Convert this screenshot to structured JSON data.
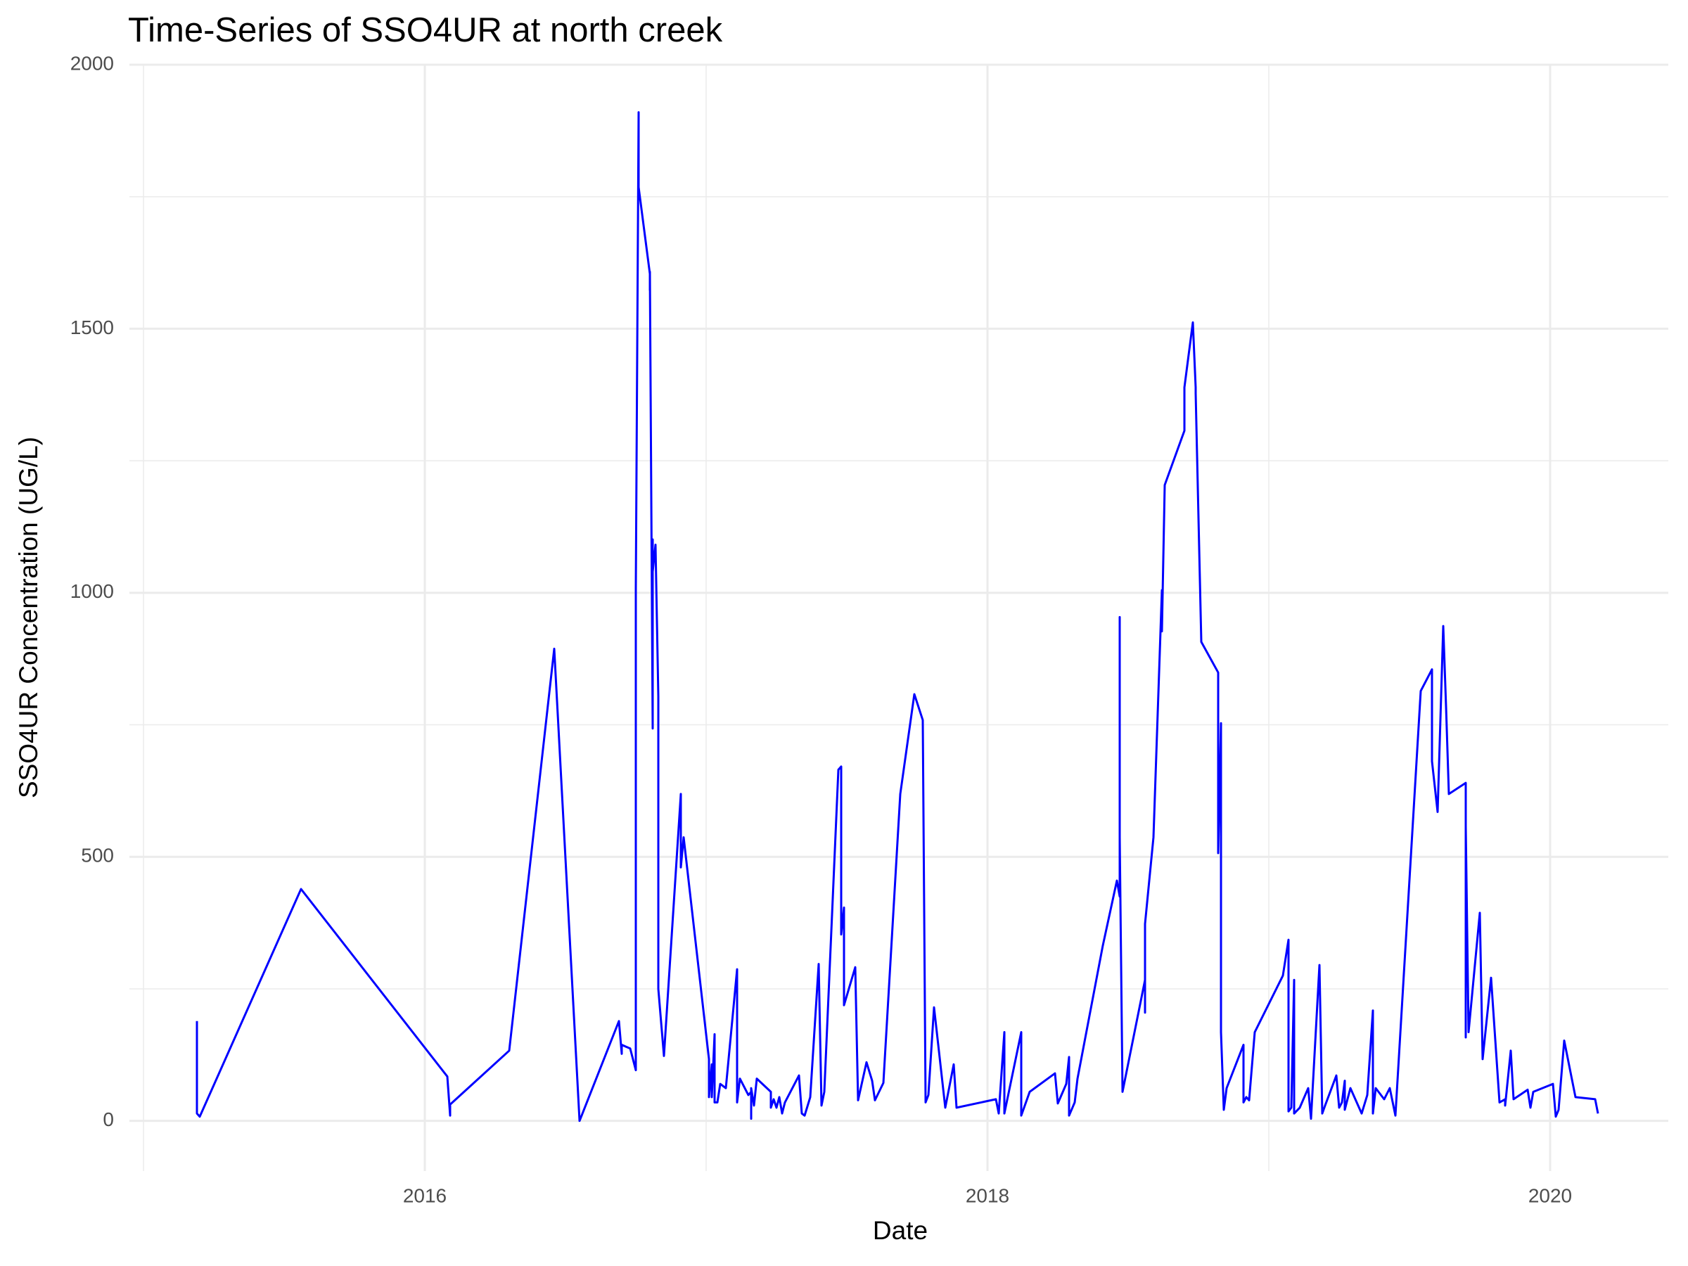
{
  "chart_data": {
    "type": "line",
    "title": "Time-Series of SSO4UR at north creek",
    "x_label": "Date",
    "y_label": "SSO4UR Concentration (UG/L)",
    "color": "#0000ff",
    "grid": true,
    "xlim": [
      2014.95,
      2020.42
    ],
    "xticks": [
      2016,
      2018,
      2020
    ],
    "xminorticks": [
      2015,
      2017,
      2019
    ],
    "ylim": [
      -95,
      2000
    ],
    "yticks": [
      0,
      500,
      1000,
      1500,
      2000
    ],
    "yminorticks": [
      250,
      750,
      1250,
      1750
    ],
    "x": [
      2015.19,
      2015.19,
      2015.2,
      2015.56,
      2016.08,
      2016.09,
      2016.09,
      2016.3,
      2016.46,
      2016.55,
      2016.69,
      2016.7,
      2016.7,
      2016.73,
      2016.75,
      2016.75,
      2016.76,
      2016.76,
      2016.76,
      2016.8,
      2016.8,
      2016.8,
      2016.81,
      2016.81,
      2016.81,
      2016.82,
      2016.83,
      2016.83,
      2016.85,
      2016.91,
      2016.91,
      2016.92,
      2017.01,
      2017.01,
      2017.02,
      2017.02,
      2017.03,
      2017.03,
      2017.04,
      2017.05,
      2017.07,
      2017.11,
      2017.11,
      2017.12,
      2017.15,
      2017.16,
      2017.16,
      2017.16,
      2017.17,
      2017.18,
      2017.23,
      2017.23,
      2017.24,
      2017.25,
      2017.26,
      2017.27,
      2017.28,
      2017.33,
      2017.34,
      2017.35,
      2017.37,
      2017.4,
      2017.41,
      2017.42,
      2017.47,
      2017.48,
      2017.48,
      2017.49,
      2017.49,
      2017.53,
      2017.54,
      2017.57,
      2017.59,
      2017.6,
      2017.63,
      2017.69,
      2017.74,
      2017.77,
      2017.78,
      2017.79,
      2017.81,
      2017.85,
      2017.88,
      2017.89,
      2018.03,
      2018.04,
      2018.06,
      2018.06,
      2018.12,
      2018.12,
      2018.13,
      2018.15,
      2018.24,
      2018.25,
      2018.28,
      2018.29,
      2018.29,
      2018.31,
      2018.32,
      2018.41,
      2018.46,
      2018.47,
      2018.47,
      2018.47,
      2018.48,
      2018.56,
      2018.56,
      2018.56,
      2018.59,
      2018.62,
      2018.62,
      2018.63,
      2018.7,
      2018.7,
      2018.73,
      2018.74,
      2018.74,
      2018.76,
      2018.82,
      2018.82,
      2018.83,
      2018.83,
      2018.84,
      2018.85,
      2018.91,
      2018.91,
      2018.92,
      2018.93,
      2018.95,
      2019.05,
      2019.07,
      2019.07,
      2019.08,
      2019.09,
      2019.09,
      2019.11,
      2019.14,
      2019.15,
      2019.18,
      2019.19,
      2019.2,
      2019.24,
      2019.25,
      2019.26,
      2019.27,
      2019.27,
      2019.29,
      2019.33,
      2019.35,
      2019.37,
      2019.37,
      2019.38,
      2019.41,
      2019.43,
      2019.45,
      2019.54,
      2019.58,
      2019.58,
      2019.6,
      2019.62,
      2019.63,
      2019.64,
      2019.7,
      2019.7,
      2019.7,
      2019.71,
      2019.75,
      2019.76,
      2019.79,
      2019.82,
      2019.84,
      2019.84,
      2019.86,
      2019.87,
      2019.92,
      2019.93,
      2019.94,
      2020.01,
      2020.02,
      2020.03,
      2020.05,
      2020.09,
      2020.16,
      2020.17
    ],
    "values": [
      189,
      14,
      8,
      439,
      84,
      10,
      31,
      133,
      894,
      0,
      189,
      127,
      144,
      137,
      96,
      1009,
      1910,
      1809,
      1768,
      1604,
      1573,
      1608,
      743,
      1101,
      1040,
      1091,
      804,
      250,
      123,
      619,
      480,
      537,
      117,
      45,
      107,
      45,
      164,
      35,
      35,
      70,
      62,
      287,
      35,
      80,
      49,
      55,
      4,
      62,
      29,
      80,
      55,
      25,
      41,
      25,
      45,
      14,
      35,
      86,
      14,
      10,
      45,
      297,
      29,
      55,
      665,
      671,
      353,
      404,
      219,
      291,
      39,
      111,
      76,
      39,
      72,
      619,
      808,
      759,
      35,
      49,
      215,
      25,
      107,
      25,
      41,
      14,
      168,
      14,
      168,
      10,
      25,
      55,
      90,
      33,
      70,
      121,
      10,
      35,
      80,
      332,
      455,
      425,
      954,
      537,
      55,
      267,
      205,
      373,
      537,
      1005,
      927,
      1204,
      1307,
      1389,
      1512,
      1389,
      1378,
      907,
      849,
      507,
      753,
      168,
      21,
      62,
      144,
      35,
      45,
      39,
      168,
      275,
      343,
      18,
      25,
      267,
      14,
      25,
      62,
      4,
      295,
      14,
      29,
      86,
      25,
      35,
      76,
      21,
      62,
      14,
      49,
      209,
      14,
      62,
      41,
      62,
      10,
      814,
      855,
      681,
      585,
      937,
      784,
      619,
      640,
      158,
      558,
      168,
      394,
      117,
      271,
      35,
      41,
      29,
      133,
      41,
      59,
      25,
      55,
      70,
      8,
      21,
      152,
      45,
      41,
      14
    ]
  }
}
